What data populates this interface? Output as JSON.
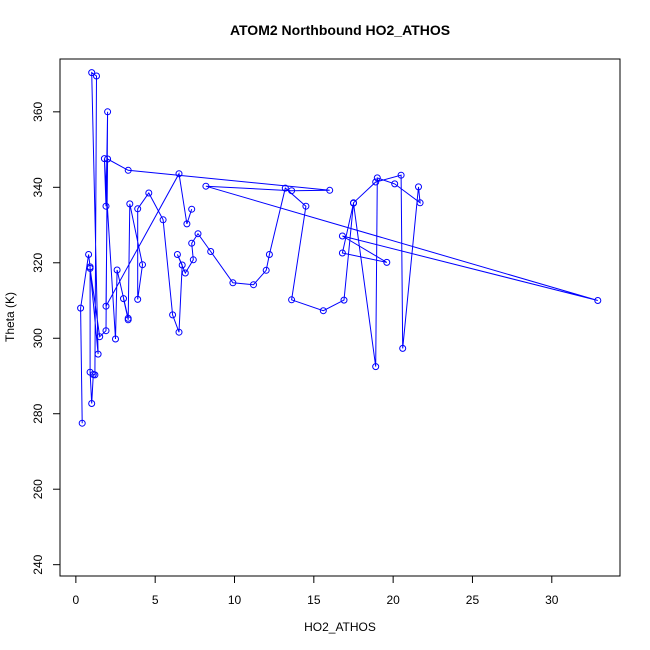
{
  "chart_data": {
    "type": "line",
    "title": "ATOM2 Northbound HO2_ATHOS",
    "xlabel": "HO2_ATHOS",
    "ylabel": "Theta (K)",
    "xlim": [
      -1,
      34.3
    ],
    "ylim": [
      237,
      374
    ],
    "xticks": [
      0,
      5,
      10,
      15,
      20,
      25,
      30
    ],
    "yticks": [
      240,
      260,
      280,
      300,
      320,
      340,
      360
    ],
    "grid": false,
    "series_color": "#0000ff",
    "x": [
      0.4,
      0.3,
      0.8,
      0.9,
      0.9,
      1.0,
      1.1,
      1.2,
      1.3,
      1.0,
      1.4,
      0.9,
      1.5,
      1.9,
      2.0,
      1.9,
      1.8,
      2.5,
      2.6,
      3.3,
      3.0,
      3.3,
      3.4,
      4.2,
      3.9,
      3.9,
      4.6,
      5.5,
      6.1,
      6.5,
      6.7,
      6.4,
      6.9,
      7.4,
      7.3,
      7.7,
      8.5,
      9.9,
      11.2,
      12.0,
      12.2,
      13.2,
      14.5,
      13.6,
      15.6,
      16.9,
      17.5,
      18.9,
      20.5,
      20.6,
      21.6,
      21.7,
      20.1,
      19.0,
      18.9,
      17.5,
      16.8,
      19.6,
      16.8,
      32.9,
      8.2,
      13.6,
      16.0,
      3.3,
      2.0,
      1.9,
      6.5,
      7.0,
      7.3
    ],
    "y": [
      277.5,
      308,
      322.2,
      318.9,
      291,
      282.7,
      290.4,
      290.3,
      369.5,
      370.4,
      295.8,
      318.5,
      300.4,
      302,
      360,
      335,
      347.6,
      299.8,
      318.1,
      305.3,
      310.5,
      304.9,
      335.6,
      319.5,
      310.3,
      334.3,
      338.5,
      331.4,
      306.2,
      301.6,
      319.4,
      322.2,
      317.3,
      320.8,
      325.2,
      327.7,
      323,
      314.7,
      314.2,
      318,
      322.2,
      339.8,
      335,
      310.2,
      307.3,
      310.1,
      335.9,
      341.4,
      343.2,
      297.3,
      340.1,
      335.9,
      340.9,
      342.5,
      292.5,
      335.8,
      322.6,
      320.1,
      327.1,
      310,
      340.3,
      339.1,
      339.2,
      344.5,
      347.5,
      308.5,
      343.6,
      330.3,
      334.2
    ]
  }
}
